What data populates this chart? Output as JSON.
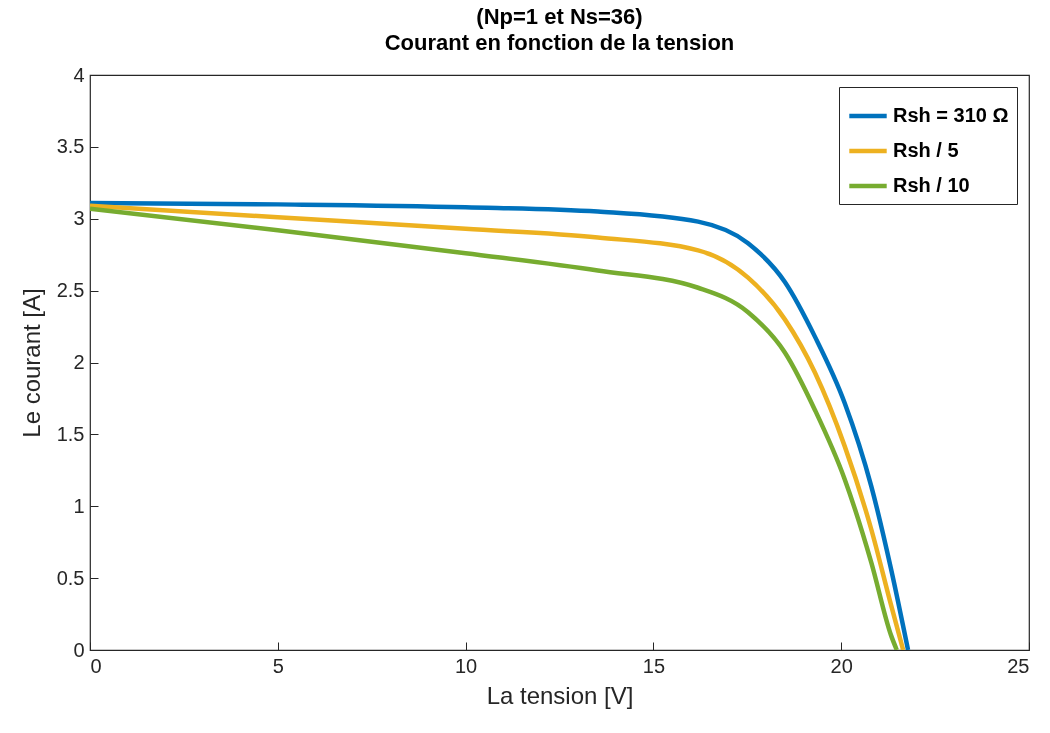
{
  "chart_data": {
    "type": "line",
    "title": "(Np=1 et Ns=36)",
    "subtitle": "Courant en fonction de la tension",
    "xlabel": "La tension [V]",
    "ylabel": "Le courant [A]",
    "xlim": [
      0,
      25
    ],
    "xticks": [
      0,
      5,
      10,
      15,
      20,
      25
    ],
    "ylim": [
      0,
      4
    ],
    "yticks": [
      0,
      0.5,
      1,
      1.5,
      2,
      2.5,
      3,
      3.5,
      4
    ],
    "grid": false,
    "legend": "top right",
    "series": [
      {
        "name": "Rsh = 310 Ω",
        "color": "#0072bd",
        "x": [
          0,
          5,
          10,
          13.52,
          16.19,
          17.52,
          18.5,
          19.3,
          20.09,
          20.8,
          21.33,
          21.78
        ],
        "values": [
          3.11,
          3.1,
          3.08,
          3.05,
          2.98,
          2.83,
          2.56,
          2.18,
          1.72,
          1.14,
          0.56,
          0
        ]
      },
      {
        "name": "Rsh / 5",
        "color": "#edb120",
        "x": [
          0,
          5,
          10,
          13.52,
          16.19,
          17.52,
          18.5,
          19.3,
          20.09,
          20.8,
          21.33,
          21.65
        ],
        "values": [
          3.09,
          3.01,
          2.93,
          2.87,
          2.78,
          2.59,
          2.3,
          1.93,
          1.42,
          0.84,
          0.31,
          0
        ]
      },
      {
        "name": "Rsh / 10",
        "color": "#77ac30",
        "x": [
          0,
          5,
          10,
          13.52,
          16.19,
          17.52,
          18.5,
          19.3,
          20.09,
          20.8,
          21.33,
          21.48
        ],
        "values": [
          3.07,
          2.92,
          2.76,
          2.64,
          2.52,
          2.35,
          2.07,
          1.67,
          1.19,
          0.61,
          0.1,
          0
        ]
      }
    ]
  }
}
